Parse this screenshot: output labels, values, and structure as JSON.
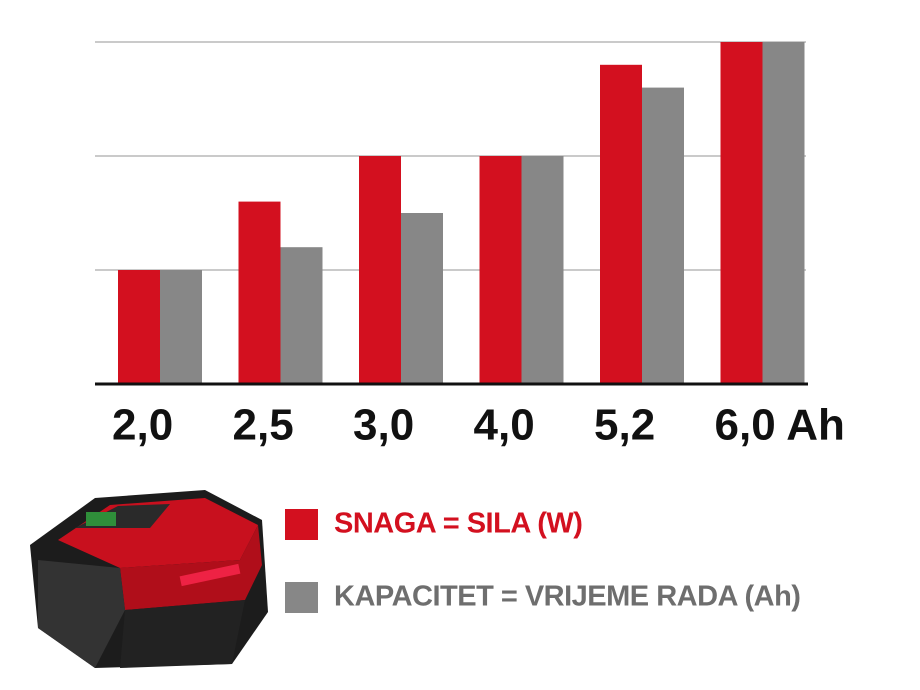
{
  "chart_data": {
    "type": "bar",
    "categories": [
      "2,0",
      "2,5",
      "3,0",
      "4,0",
      "5,2",
      "6,0 Ah"
    ],
    "series": [
      {
        "name": "SNAGA = SILA (W)",
        "color": "#d3101f",
        "values": [
          1.0,
          1.6,
          2.0,
          2.0,
          2.8,
          3.0
        ]
      },
      {
        "name": "KAPACITET = VRIJEME RADA (Ah)",
        "color": "#878787",
        "values": [
          1.0,
          1.2,
          1.5,
          2.0,
          2.6,
          3.0
        ]
      }
    ],
    "ylim": [
      0,
      3
    ],
    "yticks": [
      1,
      2,
      3
    ],
    "grid": true
  }
}
